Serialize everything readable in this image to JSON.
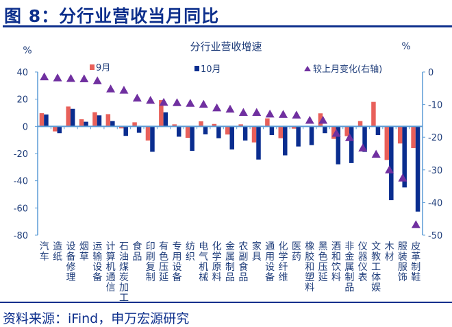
{
  "header": {
    "title": "图 8：分行业营收当月同比"
  },
  "footer": {
    "source": "资料来源：iFind，申万宏源研究"
  },
  "chart_data": {
    "type": "bar",
    "title": "分行业营收增速",
    "ylabel": "%",
    "y2label": "%",
    "ylim": [
      -80,
      40
    ],
    "y2lim": [
      -50,
      0
    ],
    "yticks": [
      40,
      20,
      0,
      -20,
      -40,
      -60,
      -80
    ],
    "y2ticks": [
      0,
      -10,
      -20,
      -30,
      -40,
      -50
    ],
    "legend_position": "top",
    "colors": {
      "sep": "#E8605A",
      "oct": "#0A2D8F",
      "change": "#7030A0",
      "axis": "#5B9BD5"
    },
    "categories": [
      "汽车",
      "造纸",
      "设备修理",
      "烟草",
      "运输设备",
      "计算机通信",
      "石油煤炭加工",
      "食品",
      "印刷复制",
      "有色压延",
      "专用设备",
      "纺织",
      "电气机械",
      "化学原料",
      "金属制品",
      "农副食品",
      "家具",
      "通用设备",
      "化学纤维",
      "医药",
      "橡胶和塑料",
      "黑色压延",
      "酒和饮料",
      "非金属制品",
      "仪器仪表",
      "文教工体娱",
      "木材",
      "服装服饰",
      "皮革制鞋"
    ],
    "series": [
      {
        "name": "9月",
        "type": "bar",
        "axis": "left",
        "values": [
          9.7,
          -3.7,
          14.6,
          5.2,
          10.4,
          9.0,
          -1.5,
          3.0,
          -10.4,
          19.3,
          1.5,
          -8.4,
          3.7,
          1.8,
          -6.0,
          1.5,
          -11.8,
          5.9,
          -8.7,
          -1.7,
          0.0,
          9.6,
          -9.2,
          -7.2,
          3.9,
          18.0,
          -24.7,
          -12.6,
          -16.0
        ]
      },
      {
        "name": "10月",
        "type": "bar",
        "axis": "left",
        "values": [
          8.7,
          -5.0,
          12.9,
          3.4,
          8.1,
          3.9,
          -7.0,
          -4.7,
          -18.7,
          10.3,
          -7.6,
          -18.0,
          -5.9,
          -8.7,
          -17.0,
          -10.4,
          -24.4,
          -6.4,
          -21.3,
          -14.8,
          -13.8,
          -5.0,
          -27.9,
          -27.0,
          -18.8,
          -6.4,
          -54.3,
          -44.9,
          -62.7
        ]
      },
      {
        "name": "较上月变化(右轴)",
        "type": "scatter",
        "marker": "triangle",
        "axis": "right",
        "values": [
          -1.4,
          -1.7,
          -1.9,
          -2.0,
          -2.6,
          -5.1,
          -5.5,
          -7.9,
          -8.6,
          -9.2,
          -9.3,
          -9.5,
          -9.8,
          -10.9,
          -11.3,
          -12.3,
          -12.3,
          -12.8,
          -12.9,
          -13.1,
          -14.7,
          -14.7,
          -18.7,
          -20.0,
          -23.2,
          -25.1,
          -29.9,
          -32.4,
          -46.7
        ]
      }
    ]
  }
}
